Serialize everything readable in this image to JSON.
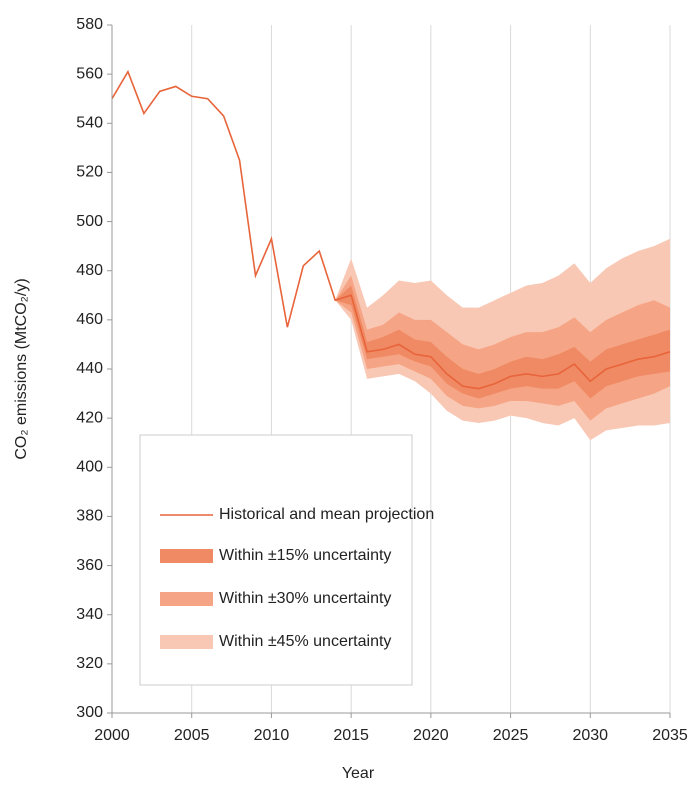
{
  "chart_data": {
    "type": "line",
    "xlabel": "Year",
    "ylabel": "CO₂ emissions (MtCO₂/y)",
    "xlim": [
      2000,
      2035
    ],
    "ylim": [
      300,
      580
    ],
    "xticks": [
      2000,
      2005,
      2010,
      2015,
      2020,
      2025,
      2030,
      2035
    ],
    "yticks": [
      300,
      320,
      340,
      360,
      380,
      400,
      420,
      440,
      460,
      480,
      500,
      520,
      540,
      560,
      580
    ],
    "grid": "x",
    "legend": "lower left",
    "x": [
      2000,
      2001,
      2002,
      2003,
      2004,
      2005,
      2006,
      2007,
      2008,
      2009,
      2010,
      2011,
      2012,
      2013,
      2014,
      2015,
      2016,
      2017,
      2018,
      2019,
      2020,
      2021,
      2022,
      2023,
      2024,
      2025,
      2026,
      2027,
      2028,
      2029,
      2030,
      2031,
      2032,
      2033,
      2034,
      2035
    ],
    "series": [
      {
        "name": "Historical and mean projection",
        "color": "#e8643a",
        "values": [
          550,
          561,
          544,
          553,
          555,
          551,
          550,
          543,
          525,
          478,
          493,
          457,
          482,
          488,
          468,
          470,
          447,
          448,
          450,
          446,
          445,
          438,
          433,
          432,
          434,
          437,
          438,
          437,
          438,
          442,
          435,
          440,
          442,
          444,
          445,
          447
        ]
      }
    ],
    "band_x": [
      2014,
      2015,
      2016,
      2017,
      2018,
      2019,
      2020,
      2021,
      2022,
      2023,
      2024,
      2025,
      2026,
      2027,
      2028,
      2029,
      2030,
      2031,
      2032,
      2033,
      2034,
      2035
    ],
    "bands": [
      {
        "name": "Within ±15% uncertainty",
        "color": "#f08a64",
        "lower": [
          468,
          466,
          444,
          445,
          446,
          443,
          441,
          434,
          430,
          428,
          430,
          432,
          433,
          432,
          432,
          435,
          428,
          433,
          435,
          437,
          438,
          439
        ],
        "upper": [
          468,
          474,
          451,
          453,
          456,
          452,
          451,
          445,
          440,
          438,
          440,
          443,
          445,
          444,
          446,
          449,
          443,
          448,
          450,
          452,
          454,
          456
        ]
      },
      {
        "name": "Within ±30% uncertainty",
        "color": "#f5a585",
        "lower": [
          468,
          463,
          440,
          441,
          442,
          439,
          436,
          429,
          425,
          424,
          425,
          427,
          427,
          426,
          425,
          427,
          419,
          424,
          426,
          428,
          430,
          433
        ],
        "upper": [
          468,
          478,
          456,
          458,
          463,
          460,
          460,
          455,
          450,
          448,
          450,
          453,
          455,
          455,
          457,
          461,
          455,
          460,
          463,
          466,
          468,
          465
        ]
      },
      {
        "name": "Within ±45% uncertainty",
        "color": "#f9c8b4",
        "lower": [
          468,
          460,
          436,
          437,
          438,
          435,
          430,
          423,
          419,
          418,
          419,
          421,
          420,
          418,
          417,
          420,
          411,
          415,
          416,
          417,
          417,
          418
        ],
        "upper": [
          468,
          485,
          465,
          470,
          476,
          475,
          476,
          470,
          465,
          465,
          468,
          471,
          474,
          475,
          478,
          483,
          475,
          481,
          485,
          488,
          490,
          493
        ]
      }
    ]
  }
}
